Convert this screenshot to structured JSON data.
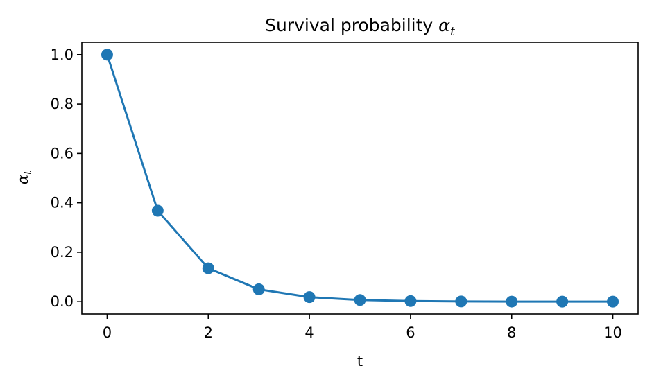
{
  "chart_data": {
    "type": "line",
    "title_prefix": "Survival probability ",
    "title_symbol": "α",
    "title_subscript": "t",
    "xlabel": "t",
    "ylabel_symbol": "α",
    "ylabel_subscript": "t",
    "x": [
      0,
      1,
      2,
      3,
      4,
      5,
      6,
      7,
      8,
      9,
      10
    ],
    "series": [
      {
        "values": [
          1.0,
          0.368,
          0.135,
          0.0498,
          0.0183,
          0.0067,
          0.0025,
          0.0009,
          0.0003,
          0.0001,
          5e-05
        ],
        "color": "#1f77b4",
        "marker": "circle"
      }
    ],
    "xlim": [
      -0.5,
      10.5
    ],
    "ylim": [
      -0.05,
      1.05
    ],
    "xticks": [
      0,
      2,
      4,
      6,
      8,
      10
    ],
    "xtick_labels": [
      "0",
      "2",
      "4",
      "6",
      "8",
      "10"
    ],
    "yticks": [
      0.0,
      0.2,
      0.4,
      0.6,
      0.8,
      1.0
    ],
    "ytick_labels": [
      "0.0",
      "0.2",
      "0.4",
      "0.6",
      "0.8",
      "1.0"
    ],
    "grid": false,
    "legend": "none"
  }
}
